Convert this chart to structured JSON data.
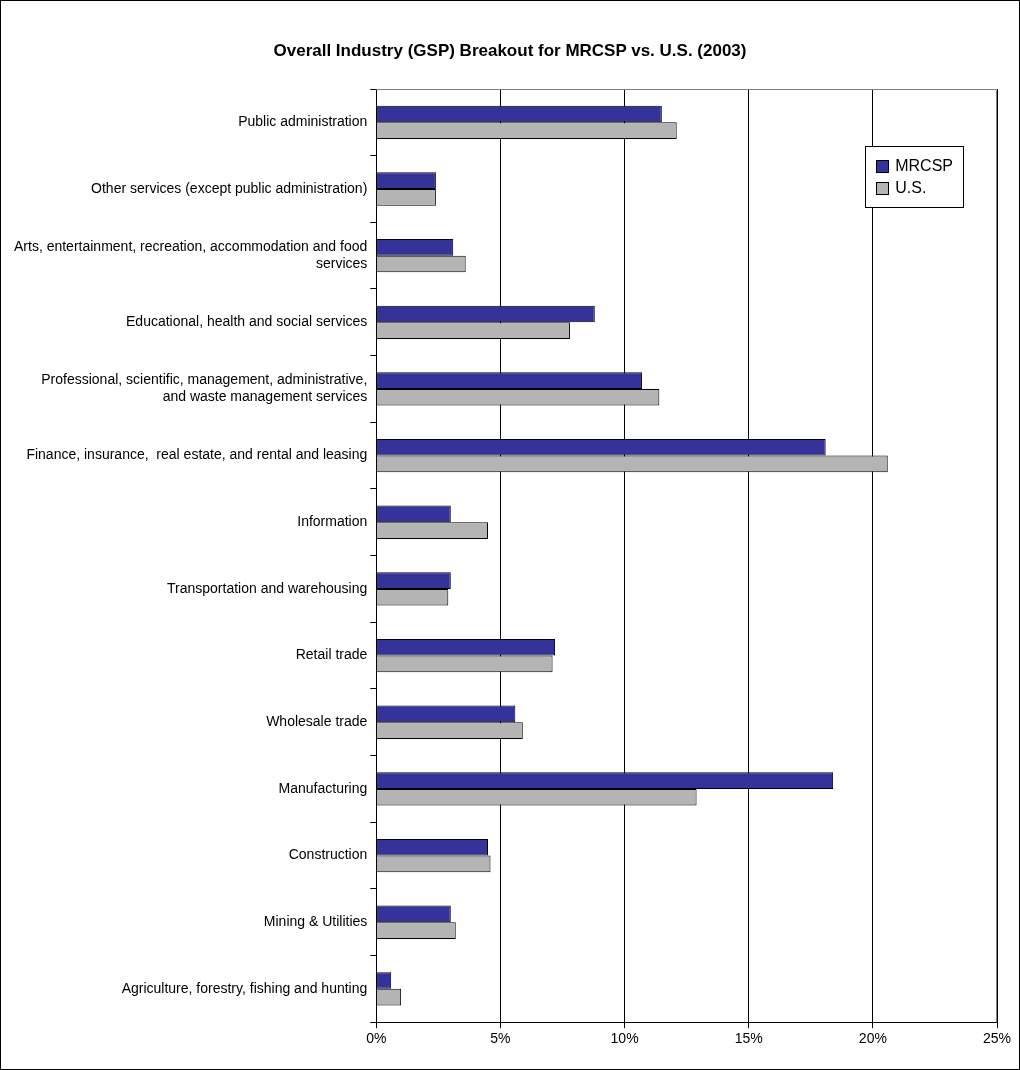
{
  "chart_data": {
    "type": "bar",
    "orientation": "horizontal",
    "title": "Overall Industry (GSP) Breakout for MRCSP vs. U.S. (2003)",
    "categories": [
      "Public administration",
      "Other services (except public administration)",
      "Arts, entertainment, recreation, accommodation and food services",
      "Educational, health and social services",
      "Professional, scientific, management, administrative, and waste management services",
      "Finance, insurance,  real estate, and rental and leasing",
      "Information",
      "Transportation and warehousing",
      "Retail trade",
      "Wholesale trade",
      "Manufacturing",
      "Construction",
      "Mining & Utilities",
      "Agriculture, forestry, fishing and hunting"
    ],
    "series": [
      {
        "name": "MRCSP",
        "color": "#333399",
        "values": [
          11.5,
          2.4,
          3.1,
          8.8,
          10.7,
          18.1,
          3.0,
          3.0,
          7.2,
          5.6,
          18.4,
          4.5,
          3.0,
          0.6
        ]
      },
      {
        "name": "U.S.",
        "color": "#b4b4b4",
        "values": [
          12.1,
          2.4,
          3.6,
          7.8,
          11.4,
          20.6,
          4.5,
          2.9,
          7.1,
          5.9,
          12.9,
          4.6,
          3.2,
          1.0
        ]
      }
    ],
    "xlim": [
      0,
      25
    ],
    "xticks": [
      {
        "value": 0,
        "label": "0%"
      },
      {
        "value": 5,
        "label": "5%"
      },
      {
        "value": 10,
        "label": "10%"
      },
      {
        "value": 15,
        "label": "15%"
      },
      {
        "value": 20,
        "label": "20%"
      },
      {
        "value": 25,
        "label": "25%"
      }
    ],
    "grid": "x",
    "legend": "top right"
  }
}
